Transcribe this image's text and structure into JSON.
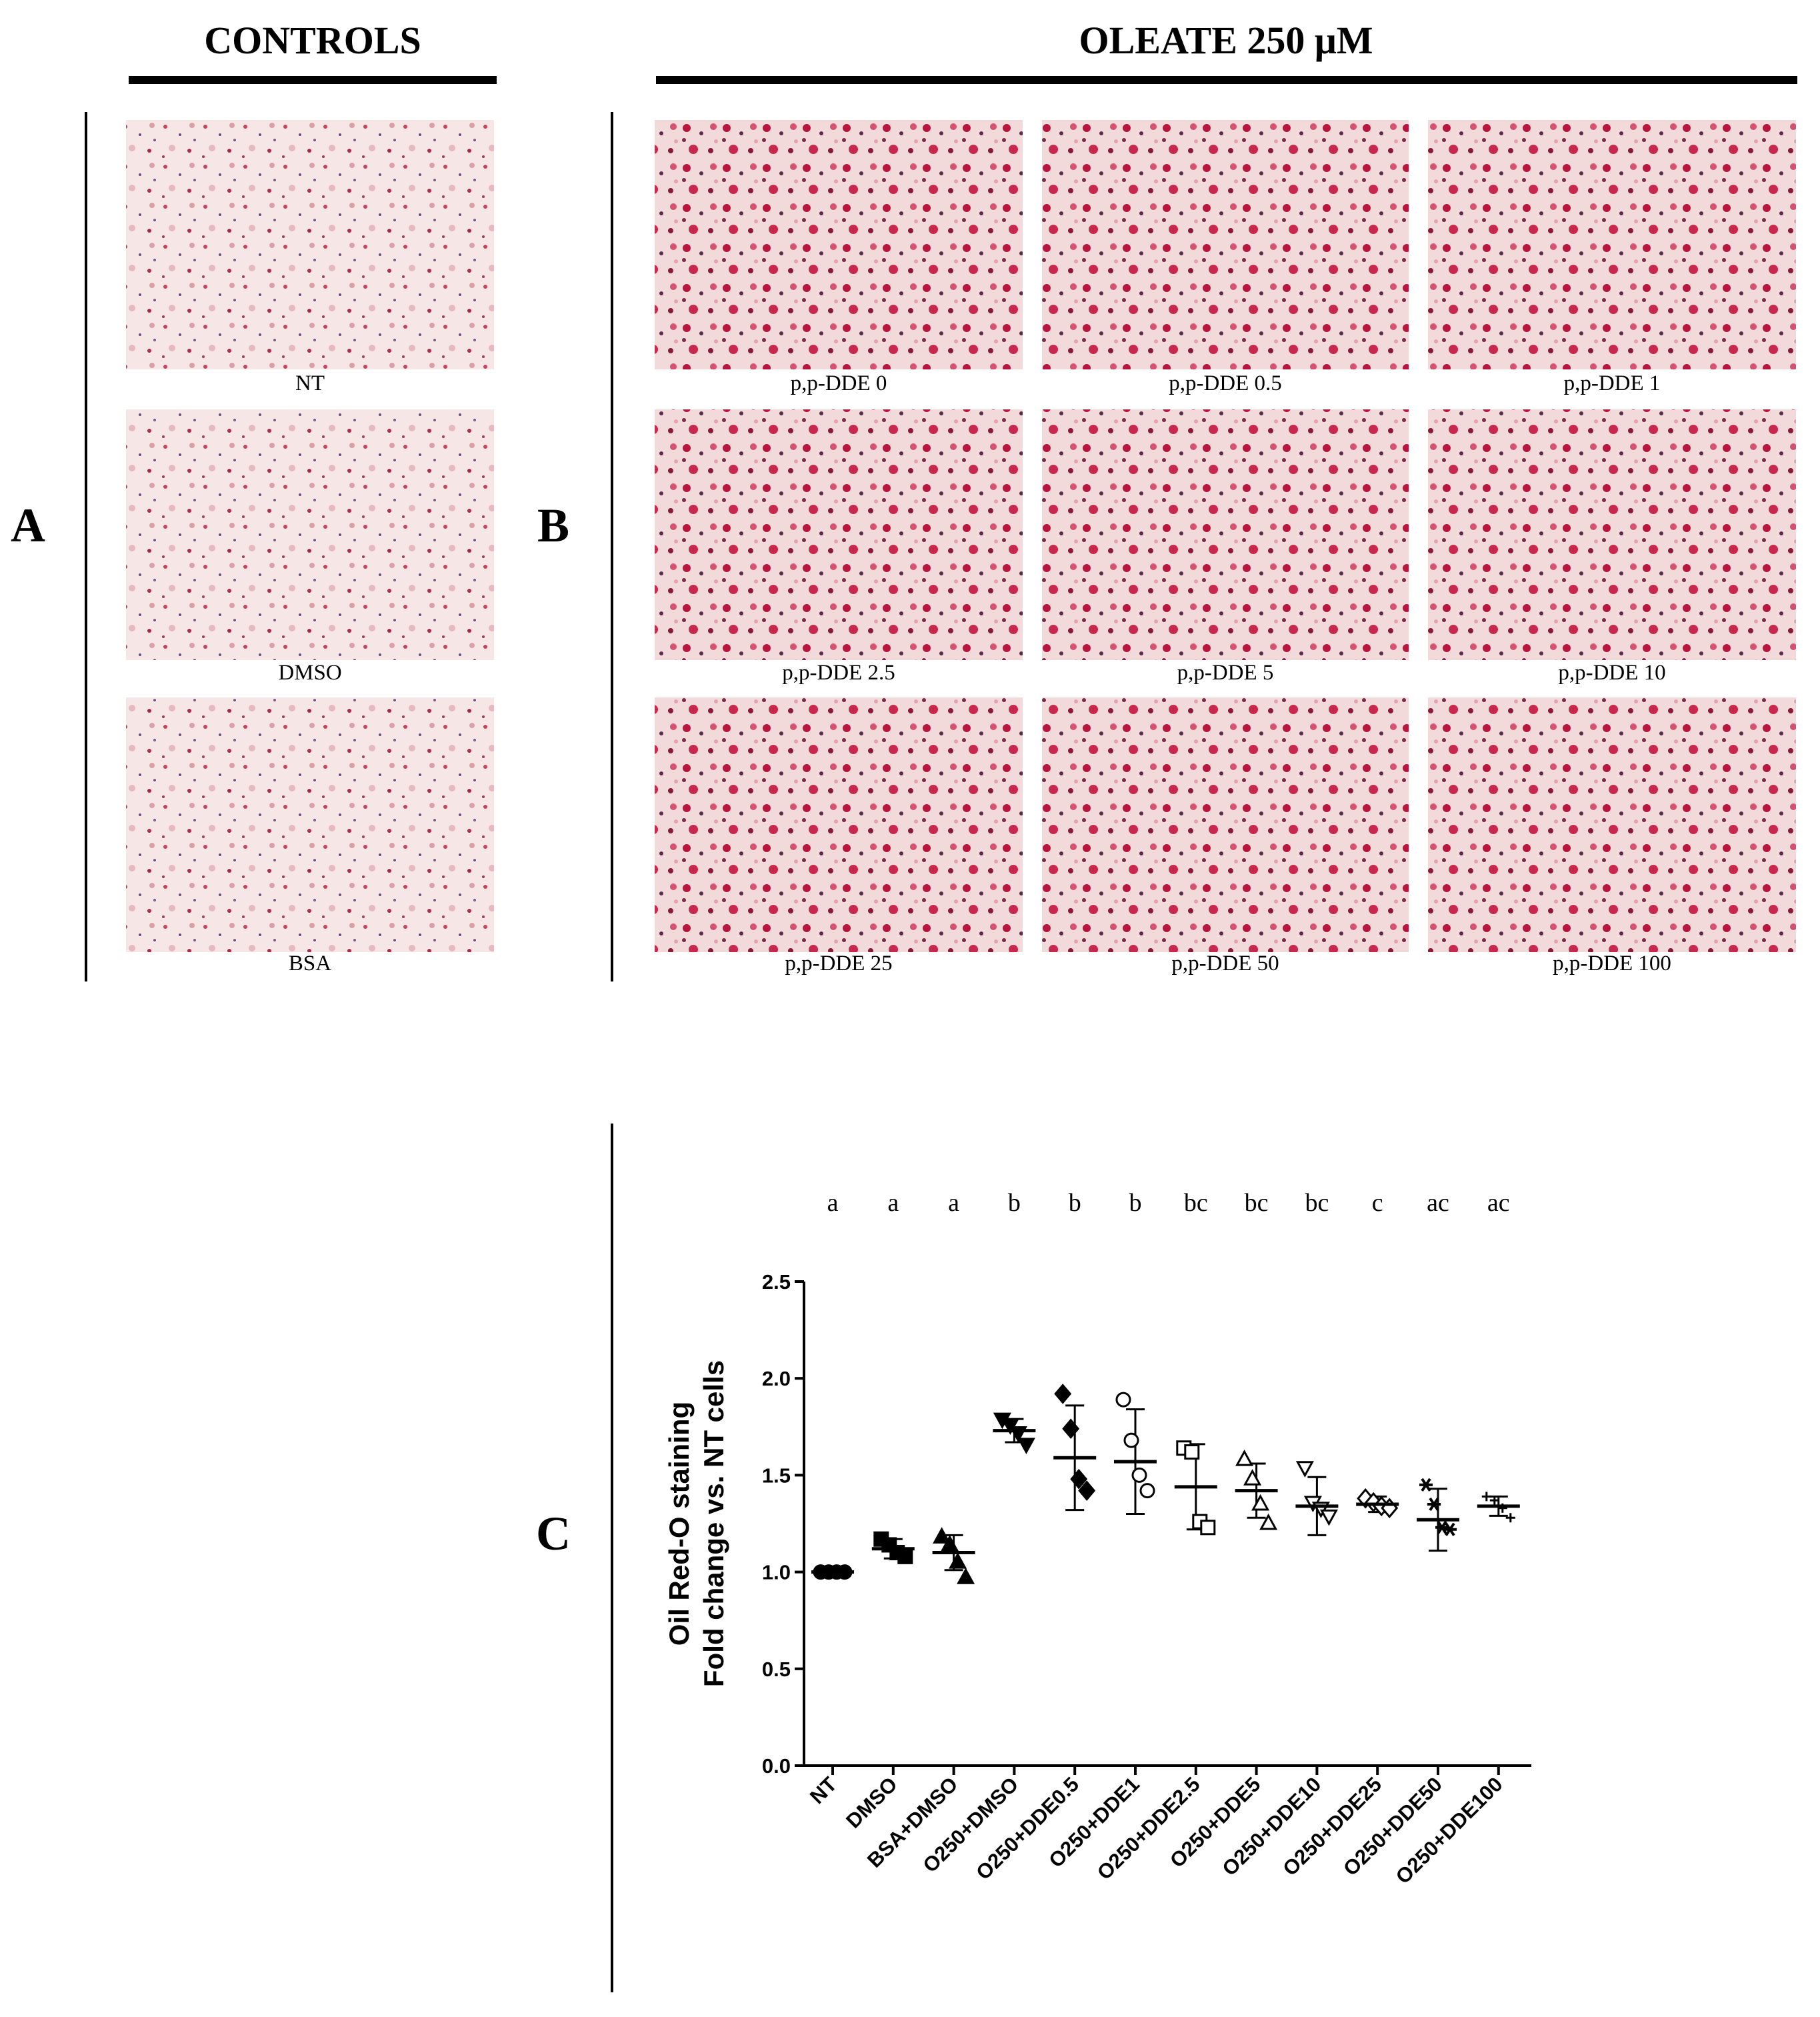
{
  "panels": {
    "a": "A",
    "b": "B",
    "c": "C"
  },
  "controls": {
    "title": "CONTROLS",
    "images": [
      "NT",
      "DMSO",
      "BSA"
    ]
  },
  "oleate": {
    "title": "OLEATE 250 μM",
    "images": [
      "p,p-DDE 0",
      "p,p-DDE 0.5",
      "p,p-DDE 1",
      "p,p-DDE 2.5",
      "p,p-DDE 5",
      "p,p-DDE 10",
      "p,p-DDE 25",
      "p,p-DDE 50",
      "p,p-DDE 100"
    ]
  },
  "chart_data": {
    "type": "dotplot",
    "ylabel": [
      "Oil Red-O staining",
      "Fold change vs. NT cells"
    ],
    "categories": [
      "NT",
      "DMSO",
      "BSA+DMSO",
      "O250+DMSO",
      "O250+DDE0.5",
      "O250+DDE1",
      "O250+DDE2.5",
      "O250+DDE5",
      "O250+DDE10",
      "O250+DDE25",
      "O250+DDE50",
      "O250+DDE100"
    ],
    "letters": [
      "a",
      "a",
      "a",
      "b",
      "b",
      "b",
      "bc",
      "bc",
      "bc",
      "c",
      "ac",
      "ac"
    ],
    "means": [
      1.0,
      1.12,
      1.1,
      1.73,
      1.59,
      1.57,
      1.44,
      1.42,
      1.34,
      1.35,
      1.27,
      1.34
    ],
    "sd": [
      0.0,
      0.05,
      0.09,
      0.06,
      0.27,
      0.27,
      0.22,
      0.14,
      0.15,
      0.04,
      0.16,
      0.05
    ],
    "points": [
      [
        1.0,
        1.0,
        1.0,
        1.0
      ],
      [
        1.17,
        1.14,
        1.1,
        1.08
      ],
      [
        1.18,
        1.14,
        1.05,
        0.97
      ],
      [
        1.79,
        1.76,
        1.72,
        1.66
      ],
      [
        1.92,
        1.74,
        1.48,
        1.42
      ],
      [
        1.89,
        1.68,
        1.5,
        1.42
      ],
      [
        1.64,
        1.62,
        1.26,
        1.23
      ],
      [
        1.58,
        1.48,
        1.35,
        1.25
      ],
      [
        1.54,
        1.36,
        1.33,
        1.29
      ],
      [
        1.38,
        1.36,
        1.34,
        1.33
      ],
      [
        1.45,
        1.35,
        1.23,
        1.22
      ],
      [
        1.39,
        1.37,
        1.33,
        1.28
      ]
    ],
    "markers": [
      {
        "shape": "circle",
        "filled": true
      },
      {
        "shape": "square",
        "filled": true
      },
      {
        "shape": "triangle",
        "filled": true
      },
      {
        "shape": "triangle-down",
        "filled": true
      },
      {
        "shape": "diamond",
        "filled": true
      },
      {
        "shape": "circle",
        "filled": false
      },
      {
        "shape": "square",
        "filled": false
      },
      {
        "shape": "triangle",
        "filled": false
      },
      {
        "shape": "triangle-down",
        "filled": false
      },
      {
        "shape": "diamond",
        "filled": false
      },
      {
        "shape": "asterisk",
        "filled": true
      },
      {
        "shape": "plus",
        "filled": true
      }
    ],
    "color": "#000000",
    "ylim": [
      0,
      2.5
    ],
    "yticks": [
      {
        "value": 0,
        "label": "0.0"
      },
      0.5,
      {
        "value": 1,
        "label": "1.0"
      },
      1.5,
      {
        "value": 2,
        "label": "2.0"
      },
      2.5
    ]
  }
}
